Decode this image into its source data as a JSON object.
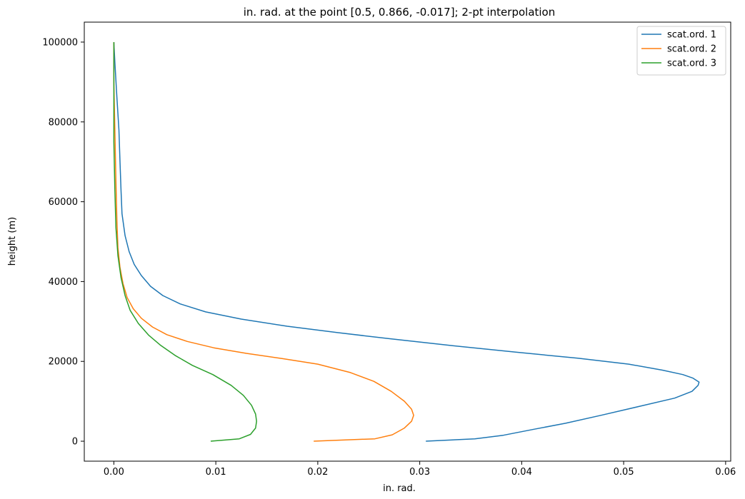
{
  "chart_data": {
    "type": "line",
    "title": "in. rad. at the point [0.5, 0.866, -0.017]; 2-pt interpolation",
    "xlabel": "in. rad.",
    "ylabel": "height (m)",
    "xlim": [
      -0.0029,
      0.0605
    ],
    "ylim": [
      -5000,
      105000
    ],
    "xticks": [
      0.0,
      0.01,
      0.02,
      0.03,
      0.04,
      0.05,
      0.06
    ],
    "xtick_labels": [
      "0.00",
      "0.01",
      "0.02",
      "0.03",
      "0.04",
      "0.05",
      "0.06"
    ],
    "yticks": [
      0,
      20000,
      40000,
      60000,
      80000,
      100000
    ],
    "ytick_labels": [
      "0",
      "20000",
      "40000",
      "60000",
      "80000",
      "100000"
    ],
    "grid": false,
    "legend_position": "top-right",
    "series": [
      {
        "name": "scat.ord. 1",
        "color": "#1f77b4",
        "points": [
          [
            0.0306,
            0
          ],
          [
            0.0354,
            600
          ],
          [
            0.0382,
            1500
          ],
          [
            0.0412,
            3000
          ],
          [
            0.0443,
            4500
          ],
          [
            0.0478,
            6500
          ],
          [
            0.0515,
            8700
          ],
          [
            0.055,
            10800
          ],
          [
            0.0567,
            12500
          ],
          [
            0.0573,
            14000
          ],
          [
            0.0574,
            14800
          ],
          [
            0.0568,
            15800
          ],
          [
            0.0558,
            16700
          ],
          [
            0.0538,
            17800
          ],
          [
            0.0505,
            19300
          ],
          [
            0.0455,
            20800
          ],
          [
            0.0395,
            22300
          ],
          [
            0.033,
            24000
          ],
          [
            0.027,
            25700
          ],
          [
            0.022,
            27200
          ],
          [
            0.017,
            28800
          ],
          [
            0.0125,
            30600
          ],
          [
            0.009,
            32400
          ],
          [
            0.0065,
            34400
          ],
          [
            0.0048,
            36500
          ],
          [
            0.0036,
            38800
          ],
          [
            0.0027,
            41500
          ],
          [
            0.002,
            44300
          ],
          [
            0.0015,
            47500
          ],
          [
            0.0011,
            51500
          ],
          [
            0.0008,
            57000
          ],
          [
            0.0007,
            63000
          ],
          [
            0.0006,
            70000
          ],
          [
            0.0005,
            78000
          ],
          [
            0.0003,
            86000
          ],
          [
            0.0001,
            95000
          ],
          [
            0.0,
            100000
          ]
        ]
      },
      {
        "name": "scat.ord. 2",
        "color": "#ff7f0e",
        "points": [
          [
            0.0196,
            0
          ],
          [
            0.0256,
            600
          ],
          [
            0.0273,
            1600
          ],
          [
            0.0285,
            3300
          ],
          [
            0.0292,
            5000
          ],
          [
            0.0294,
            6500
          ],
          [
            0.0292,
            8000
          ],
          [
            0.0285,
            10000
          ],
          [
            0.0272,
            12500
          ],
          [
            0.0255,
            15000
          ],
          [
            0.0232,
            17200
          ],
          [
            0.02,
            19300
          ],
          [
            0.0165,
            20700
          ],
          [
            0.013,
            22000
          ],
          [
            0.0098,
            23400
          ],
          [
            0.0072,
            25000
          ],
          [
            0.0052,
            26700
          ],
          [
            0.0038,
            28600
          ],
          [
            0.0027,
            30800
          ],
          [
            0.0019,
            33200
          ],
          [
            0.0013,
            36000
          ],
          [
            0.0009,
            39500
          ],
          [
            0.0006,
            43500
          ],
          [
            0.0004,
            48500
          ],
          [
            0.0003,
            55000
          ],
          [
            0.0002,
            65000
          ],
          [
            0.0001,
            78000
          ],
          [
            0.0,
            90000
          ],
          [
            0.0,
            100000
          ]
        ]
      },
      {
        "name": "scat.ord. 3",
        "color": "#2ca02c",
        "points": [
          [
            0.0095,
            0
          ],
          [
            0.0123,
            600
          ],
          [
            0.0134,
            1700
          ],
          [
            0.0139,
            3300
          ],
          [
            0.014,
            5000
          ],
          [
            0.0139,
            6800
          ],
          [
            0.0135,
            9000
          ],
          [
            0.0127,
            11500
          ],
          [
            0.0115,
            14000
          ],
          [
            0.0097,
            16700
          ],
          [
            0.0077,
            19000
          ],
          [
            0.006,
            21500
          ],
          [
            0.0046,
            24000
          ],
          [
            0.0034,
            26600
          ],
          [
            0.0024,
            29500
          ],
          [
            0.0016,
            32800
          ],
          [
            0.0011,
            36500
          ],
          [
            0.0007,
            41000
          ],
          [
            0.0004,
            46500
          ],
          [
            0.0002,
            53500
          ],
          [
            0.0001,
            63000
          ],
          [
            0.0,
            75000
          ],
          [
            0.0,
            88000
          ],
          [
            0.0,
            100000
          ]
        ]
      }
    ]
  }
}
